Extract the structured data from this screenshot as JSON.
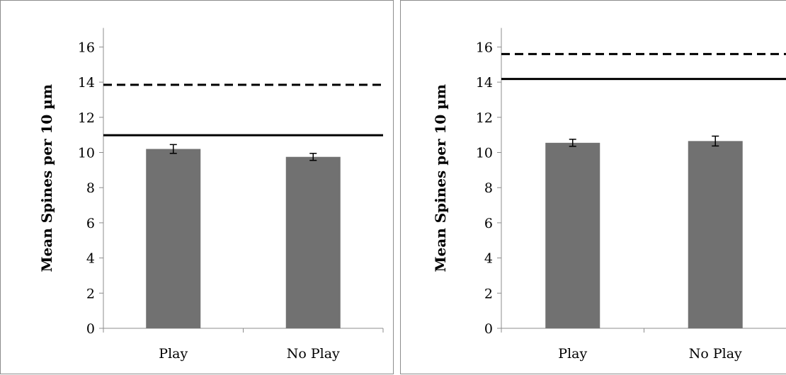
{
  "chart_data": [
    {
      "type": "bar",
      "categories": [
        "Play",
        "No Play"
      ],
      "values": [
        10.2,
        9.75
      ],
      "errors": [
        0.25,
        0.2
      ],
      "reference_lines": [
        {
          "value": 13.85,
          "style": "dashed"
        },
        {
          "value": 10.98,
          "style": "solid"
        }
      ],
      "ylabel": "Mean Spines per 10 µm",
      "xlabel": "",
      "ylim": [
        0,
        17
      ],
      "yticks": [
        0,
        2,
        4,
        6,
        8,
        10,
        12,
        14,
        16
      ],
      "bar_color": "#717171",
      "grid": false
    },
    {
      "type": "bar",
      "categories": [
        "Play",
        "No Play"
      ],
      "values": [
        10.55,
        10.65
      ],
      "errors": [
        0.2,
        0.28
      ],
      "reference_lines": [
        {
          "value": 15.6,
          "style": "dashed"
        },
        {
          "value": 14.18,
          "style": "solid"
        }
      ],
      "ylabel": "Mean Spines per 10 µm",
      "xlabel": "",
      "ylim": [
        0,
        17
      ],
      "yticks": [
        0,
        2,
        4,
        6,
        8,
        10,
        12,
        14,
        16
      ],
      "bar_color": "#717171",
      "grid": false
    }
  ]
}
